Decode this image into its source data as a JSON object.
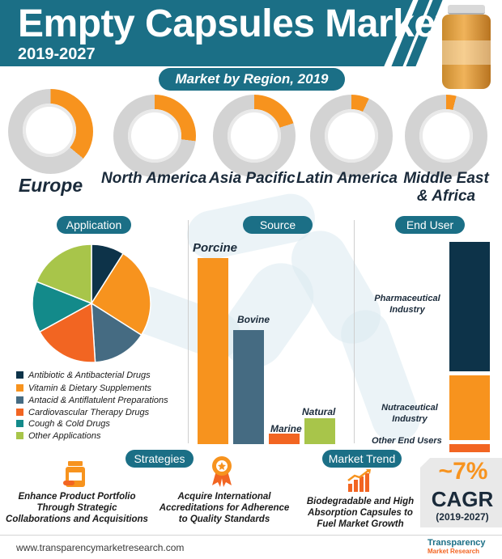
{
  "header": {
    "title": "Empty Capsules Market",
    "years": "2019-2027"
  },
  "region_section": {
    "title": "Market by Region, 2019",
    "regions": [
      {
        "label": "Europe",
        "share": 0.36
      },
      {
        "label": "North America",
        "share": 0.27
      },
      {
        "label": "Asia Pacific",
        "share": 0.2
      },
      {
        "label": "Latin America",
        "share": 0.07
      },
      {
        "label": "Middle East & Africa",
        "share": 0.04
      }
    ],
    "colors": {
      "accent": "#f7931e",
      "ring": "#d3d3d3"
    }
  },
  "sections": {
    "application": "Application",
    "source": "Source",
    "end_user": "End User",
    "strategies": "Strategies",
    "market_trend": "Market Trend"
  },
  "application": {
    "legend": [
      {
        "label": "Antibiotic & Antibacterial Drugs",
        "color": "#0d3349",
        "share": 0.09
      },
      {
        "label": "Vitamin & Dietary Supplements",
        "color": "#f7931e",
        "share": 0.25
      },
      {
        "label": "Antacid & Antiflatulent Preparations",
        "color": "#456b82",
        "share": 0.15
      },
      {
        "label": "Cardiovascular Therapy Drugs",
        "color": "#f26522",
        "share": 0.18
      },
      {
        "label": "Cough & Cold Drugs",
        "color": "#138a8a",
        "share": 0.14
      },
      {
        "label": "Other Applications",
        "color": "#a8c54a",
        "share": 0.19
      }
    ]
  },
  "source": {
    "bars": [
      {
        "label": "Porcine",
        "value": 72,
        "color": "#f7931e"
      },
      {
        "label": "Bovine",
        "value": 44,
        "color": "#456b82"
      },
      {
        "label": "Marine",
        "value": 4,
        "color": "#f26522"
      },
      {
        "label": "Natural",
        "value": 10,
        "color": "#a8c54a"
      }
    ]
  },
  "end_user": {
    "segments": [
      {
        "label": "Pharmaceutical Industry",
        "share": 0.64,
        "color": "#0d3349"
      },
      {
        "label": "Nutraceutical Industry",
        "share": 0.32,
        "color": "#f7931e"
      },
      {
        "label": "Other End Users",
        "share": 0.04,
        "color": "#f26522"
      }
    ]
  },
  "strategies": {
    "items": [
      {
        "text": "Enhance Product Portfolio Through Strategic Collaborations and Acquisitions",
        "icon": "capsule-bottle-icon"
      },
      {
        "text": "Acquire International Accreditations for Adherence to Quality Standards",
        "icon": "award-ribbon-icon"
      }
    ]
  },
  "market_trend": {
    "text": "Biodegradable and High Absorption Capsules to Fuel Market Growth",
    "icon": "growth-chart-icon"
  },
  "cagr": {
    "value": "~7%",
    "label": "CAGR",
    "period": "(2019-2027)"
  },
  "footer": {
    "url": "www.transparencymarketresearch.com",
    "brand_line1": "Transparency",
    "brand_line2": "Market Research"
  }
}
